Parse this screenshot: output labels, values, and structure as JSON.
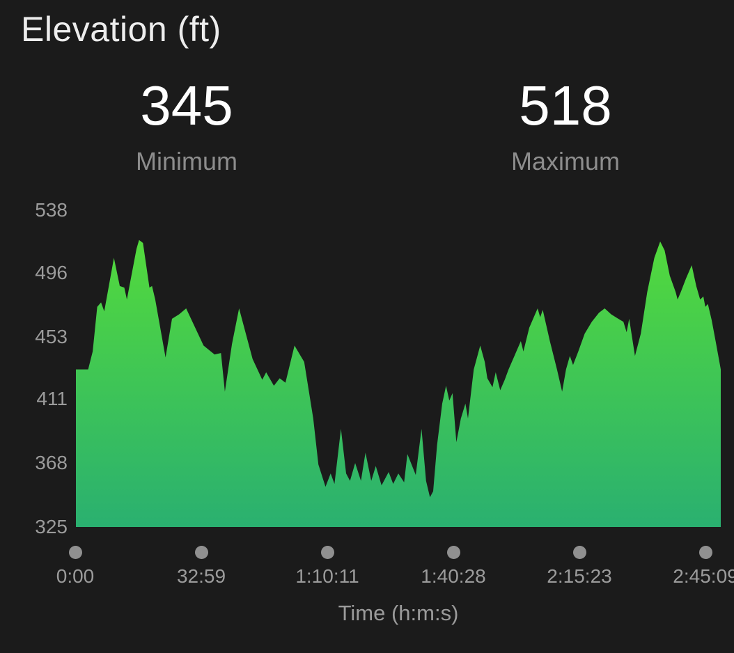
{
  "header": {
    "title": "Elevation (ft)"
  },
  "stats": {
    "min": {
      "value": "345",
      "label": "Minimum"
    },
    "max": {
      "value": "518",
      "label": "Maximum"
    }
  },
  "chart_data": {
    "type": "area",
    "title": "Elevation (ft)",
    "xlabel": "Time (h:m:s)",
    "ylabel": "Elevation (ft)",
    "x_tick_labels": [
      "0:00",
      "32:59",
      "1:10:11",
      "1:40:28",
      "2:15:23",
      "2:45:09"
    ],
    "y_ticks": [
      538,
      496,
      453,
      411,
      368,
      325
    ],
    "ylim": [
      325,
      538
    ],
    "min_elevation_ft": 345,
    "max_elevation_ft": 518,
    "grid": false,
    "legend": false,
    "colors": {
      "background": "#1b1b1b",
      "area_top": "#53da3c",
      "area_bottom": "#2ab070",
      "axis_text": "#9b9b9b",
      "dot": "#909090",
      "title_text": "#ededed",
      "value_text": "#ffffff",
      "stat_label_text": "#8d8d8d"
    },
    "series": [
      {
        "name": "Elevation",
        "x_unit": "fraction_of_plot_width",
        "y_unit": "ft",
        "points": [
          [
            0.0,
            431
          ],
          [
            0.019,
            431
          ],
          [
            0.026,
            443
          ],
          [
            0.033,
            473
          ],
          [
            0.039,
            476
          ],
          [
            0.044,
            470
          ],
          [
            0.059,
            506
          ],
          [
            0.068,
            487
          ],
          [
            0.075,
            486
          ],
          [
            0.079,
            478
          ],
          [
            0.094,
            512
          ],
          [
            0.098,
            518
          ],
          [
            0.104,
            516
          ],
          [
            0.114,
            486
          ],
          [
            0.118,
            487
          ],
          [
            0.123,
            478
          ],
          [
            0.139,
            439
          ],
          [
            0.149,
            465
          ],
          [
            0.16,
            468
          ],
          [
            0.171,
            472
          ],
          [
            0.198,
            447
          ],
          [
            0.215,
            441
          ],
          [
            0.225,
            442
          ],
          [
            0.231,
            416
          ],
          [
            0.242,
            448
          ],
          [
            0.253,
            472
          ],
          [
            0.274,
            438
          ],
          [
            0.289,
            424
          ],
          [
            0.295,
            429
          ],
          [
            0.307,
            420
          ],
          [
            0.316,
            425
          ],
          [
            0.325,
            422
          ],
          [
            0.339,
            447
          ],
          [
            0.354,
            436
          ],
          [
            0.368,
            398
          ],
          [
            0.376,
            367
          ],
          [
            0.387,
            352
          ],
          [
            0.395,
            361
          ],
          [
            0.401,
            354
          ],
          [
            0.411,
            391
          ],
          [
            0.419,
            361
          ],
          [
            0.425,
            356
          ],
          [
            0.433,
            368
          ],
          [
            0.442,
            356
          ],
          [
            0.449,
            375
          ],
          [
            0.458,
            356
          ],
          [
            0.465,
            366
          ],
          [
            0.474,
            353
          ],
          [
            0.485,
            362
          ],
          [
            0.492,
            354
          ],
          [
            0.5,
            361
          ],
          [
            0.509,
            355
          ],
          [
            0.514,
            374
          ],
          [
            0.527,
            360
          ],
          [
            0.536,
            391
          ],
          [
            0.543,
            356
          ],
          [
            0.549,
            345
          ],
          [
            0.554,
            349
          ],
          [
            0.56,
            380
          ],
          [
            0.568,
            408
          ],
          [
            0.574,
            420
          ],
          [
            0.579,
            410
          ],
          [
            0.584,
            415
          ],
          [
            0.59,
            382
          ],
          [
            0.597,
            398
          ],
          [
            0.604,
            408
          ],
          [
            0.608,
            398
          ],
          [
            0.617,
            431
          ],
          [
            0.627,
            447
          ],
          [
            0.634,
            436
          ],
          [
            0.638,
            425
          ],
          [
            0.646,
            419
          ],
          [
            0.651,
            429
          ],
          [
            0.658,
            417
          ],
          [
            0.665,
            424
          ],
          [
            0.671,
            431
          ],
          [
            0.681,
            441
          ],
          [
            0.69,
            450
          ],
          [
            0.694,
            443
          ],
          [
            0.703,
            459
          ],
          [
            0.716,
            472
          ],
          [
            0.72,
            466
          ],
          [
            0.724,
            471
          ],
          [
            0.735,
            450
          ],
          [
            0.746,
            431
          ],
          [
            0.754,
            416
          ],
          [
            0.76,
            431
          ],
          [
            0.766,
            440
          ],
          [
            0.771,
            434
          ],
          [
            0.779,
            443
          ],
          [
            0.789,
            455
          ],
          [
            0.8,
            463
          ],
          [
            0.811,
            469
          ],
          [
            0.82,
            472
          ],
          [
            0.83,
            468
          ],
          [
            0.841,
            465
          ],
          [
            0.849,
            463
          ],
          [
            0.854,
            456
          ],
          [
            0.858,
            465
          ],
          [
            0.867,
            440
          ],
          [
            0.876,
            455
          ],
          [
            0.886,
            483
          ],
          [
            0.897,
            506
          ],
          [
            0.906,
            517
          ],
          [
            0.913,
            511
          ],
          [
            0.921,
            494
          ],
          [
            0.93,
            483
          ],
          [
            0.933,
            478
          ],
          [
            0.938,
            483
          ],
          [
            0.946,
            492
          ],
          [
            0.955,
            501
          ],
          [
            0.962,
            487
          ],
          [
            0.968,
            478
          ],
          [
            0.973,
            480
          ],
          [
            0.976,
            473
          ],
          [
            0.98,
            475
          ],
          [
            0.986,
            464
          ],
          [
            0.992,
            450
          ],
          [
            1.0,
            431
          ]
        ]
      }
    ]
  }
}
